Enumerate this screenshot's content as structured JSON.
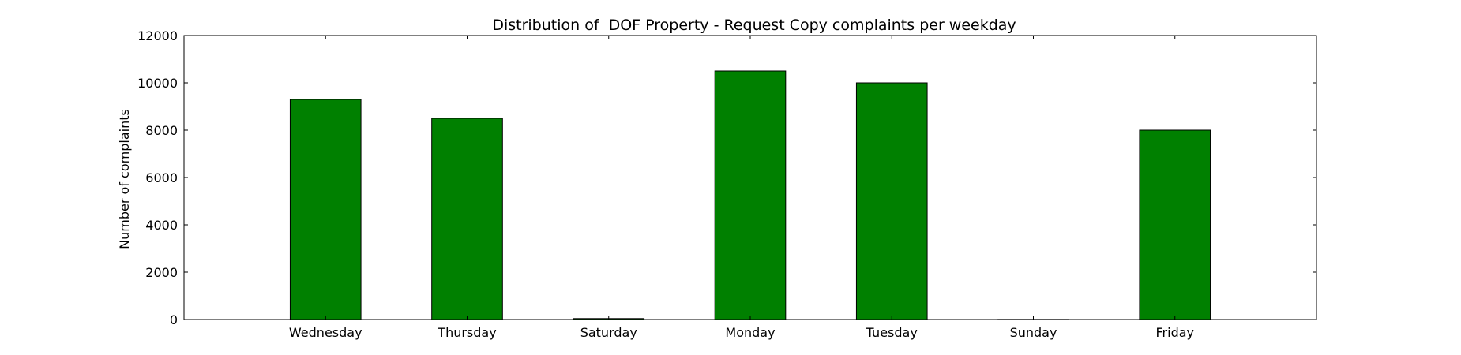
{
  "chart_data": {
    "type": "bar",
    "title": "Distribution of  DOF Property - Request Copy complaints per weekday",
    "xlabel": "",
    "ylabel": "Number of complaints",
    "categories": [
      "Wednesday",
      "Thursday",
      "Saturday",
      "Monday",
      "Tuesday",
      "Sunday",
      "Friday"
    ],
    "values": [
      9300,
      8500,
      40,
      10500,
      10000,
      5,
      8000
    ],
    "ylim": [
      0,
      12000
    ],
    "yticks": [
      0,
      2000,
      4000,
      6000,
      8000,
      10000,
      12000
    ],
    "grid": false,
    "bar_color": "#008000",
    "edge_color": "#000000"
  }
}
